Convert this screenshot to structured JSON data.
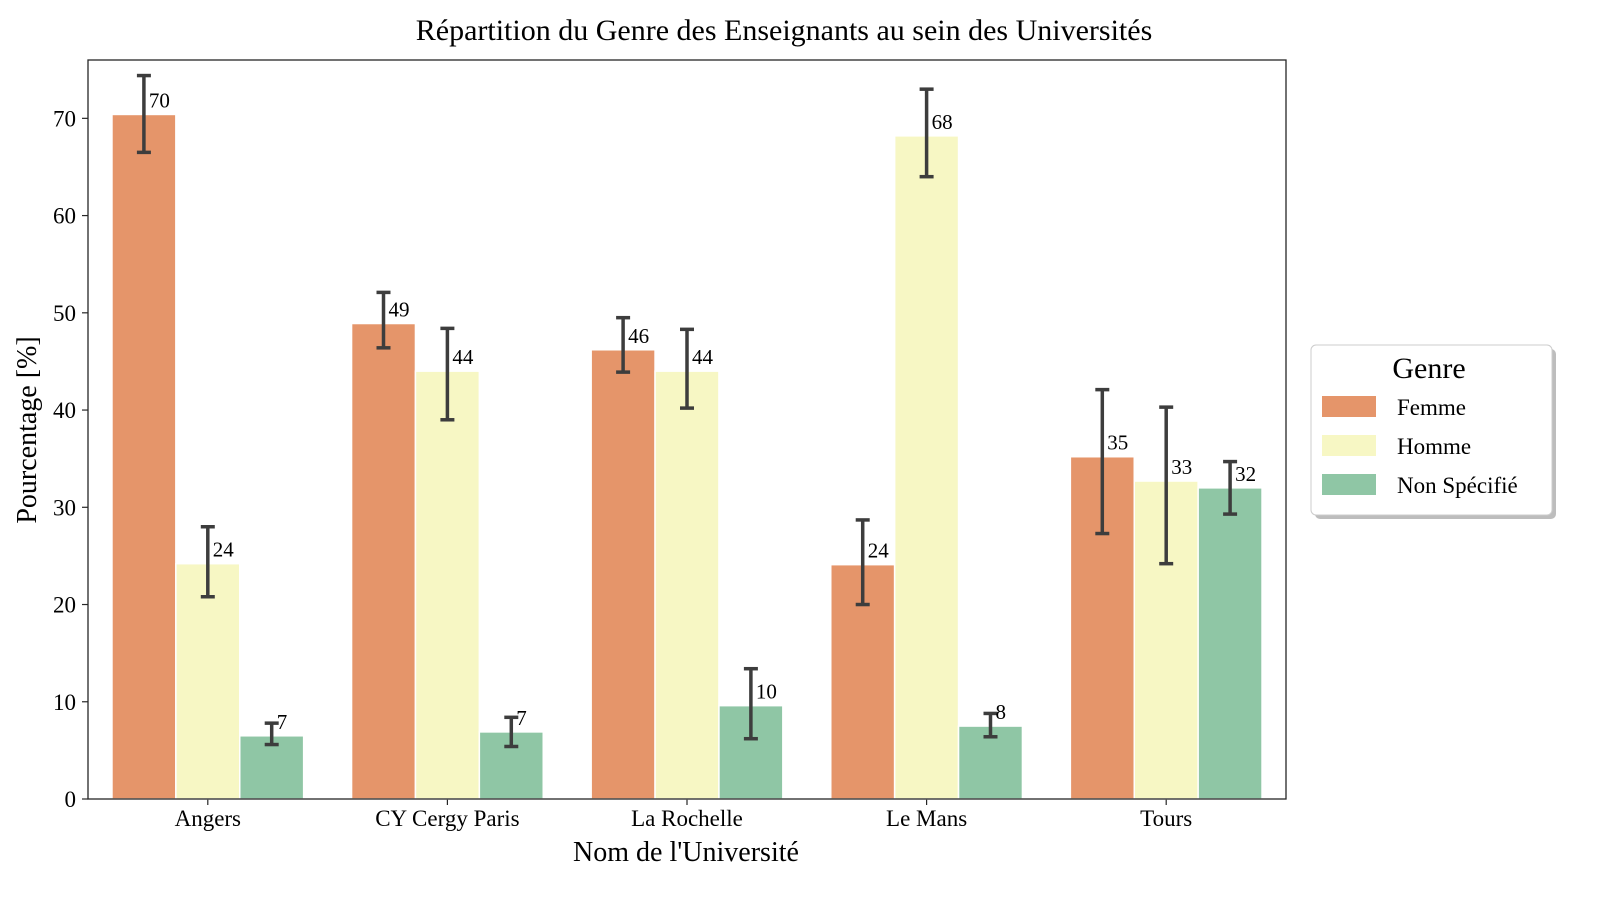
{
  "chart_data": {
    "type": "bar",
    "title": "Répartition du Genre des Enseignants au sein des Universités",
    "xlabel": "Nom de l'Université",
    "ylabel": "Pourcentage [%]",
    "ylim": [
      0,
      76
    ],
    "yticks": [
      0,
      10,
      20,
      30,
      40,
      50,
      60,
      70
    ],
    "grid": false,
    "legend": {
      "title": "Genre",
      "placement": "right"
    },
    "categories": [
      "Angers",
      "CY Cergy Paris",
      "La Rochelle",
      "Le Mans",
      "Tours"
    ],
    "series": [
      {
        "name": "Femme",
        "color": "#e5956a",
        "values": [
          70.4,
          48.9,
          46.2,
          24.1,
          35.2
        ],
        "labels": [
          "70",
          "49",
          "46",
          "24",
          "35"
        ],
        "errors": [
          [
            66.5,
            74.4
          ],
          [
            46.4,
            52.1
          ],
          [
            43.9,
            49.5
          ],
          [
            20.0,
            28.7
          ],
          [
            27.3,
            42.1
          ]
        ]
      },
      {
        "name": "Homme",
        "color": "#f7f7c4",
        "values": [
          24.2,
          44.0,
          44.0,
          68.2,
          32.7
        ],
        "labels": [
          "24",
          "44",
          "44",
          "68",
          "33"
        ],
        "errors": [
          [
            20.8,
            28.0
          ],
          [
            39.0,
            48.4
          ],
          [
            40.2,
            48.3
          ],
          [
            64.0,
            73.0
          ],
          [
            24.2,
            40.3
          ]
        ]
      },
      {
        "name": "Non Spécifié",
        "color": "#8fc6a5",
        "values": [
          6.5,
          6.9,
          9.6,
          7.5,
          32.0
        ],
        "labels": [
          "7",
          "7",
          "10",
          "8",
          "32"
        ],
        "errors": [
          [
            5.6,
            7.8
          ],
          [
            5.4,
            8.4
          ],
          [
            6.2,
            13.4
          ],
          [
            6.4,
            8.8
          ],
          [
            29.3,
            34.7
          ]
        ]
      }
    ]
  }
}
